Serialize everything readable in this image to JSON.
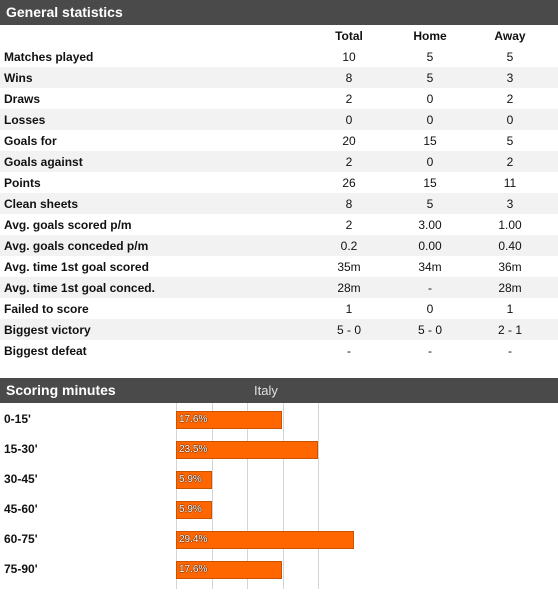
{
  "general": {
    "title": "General statistics",
    "columns": [
      "Total",
      "Home",
      "Away"
    ],
    "rows": [
      {
        "label": "Matches played",
        "values": [
          "10",
          "5",
          "5"
        ]
      },
      {
        "label": "Wins",
        "values": [
          "8",
          "5",
          "3"
        ]
      },
      {
        "label": "Draws",
        "values": [
          "2",
          "0",
          "2"
        ]
      },
      {
        "label": "Losses",
        "values": [
          "0",
          "0",
          "0"
        ]
      },
      {
        "label": "Goals for",
        "values": [
          "20",
          "15",
          "5"
        ]
      },
      {
        "label": "Goals against",
        "values": [
          "2",
          "0",
          "2"
        ]
      },
      {
        "label": "Points",
        "values": [
          "26",
          "15",
          "11"
        ]
      },
      {
        "label": "Clean sheets",
        "values": [
          "8",
          "5",
          "3"
        ]
      },
      {
        "label": "Avg. goals scored p/m",
        "values": [
          "2",
          "3.00",
          "1.00"
        ]
      },
      {
        "label": "Avg. goals conceded p/m",
        "values": [
          "0.2",
          "0.00",
          "0.40"
        ]
      },
      {
        "label": "Avg. time 1st goal scored",
        "values": [
          "35m",
          "34m",
          "36m"
        ]
      },
      {
        "label": "Avg. time 1st goal conced.",
        "values": [
          "28m",
          "-",
          "28m"
        ]
      },
      {
        "label": "Failed to score",
        "values": [
          "1",
          "0",
          "1"
        ]
      },
      {
        "label": "Biggest victory",
        "values": [
          "5 - 0",
          "5 - 0",
          "2 - 1"
        ]
      },
      {
        "label": "Biggest defeat",
        "values": [
          "-",
          "-",
          "-"
        ]
      }
    ]
  },
  "scoring": {
    "title": "Scoring minutes",
    "team": "Italy",
    "rows": [
      {
        "label": "0-15'",
        "percent": 17.6,
        "percent_label": "17.6%"
      },
      {
        "label": "15-30'",
        "percent": 23.5,
        "percent_label": "23.5%"
      },
      {
        "label": "30-45'",
        "percent": 5.9,
        "percent_label": "5.9%"
      },
      {
        "label": "45-60'",
        "percent": 5.9,
        "percent_label": "5.9%"
      },
      {
        "label": "60-75'",
        "percent": 29.4,
        "percent_label": "29.4%"
      },
      {
        "label": "75-90'",
        "percent": 17.6,
        "percent_label": "17.6%"
      }
    ]
  },
  "colors": {
    "header_bg": "#4a4a4a",
    "bar": "#ff6600",
    "alt_row": "#f2f2f2"
  }
}
